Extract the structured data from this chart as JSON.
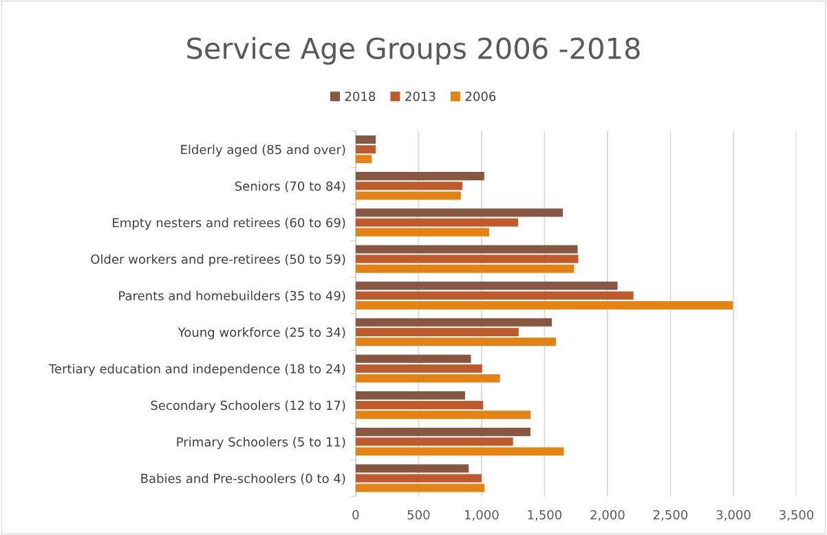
{
  "chart_data": {
    "type": "bar",
    "orientation": "horizontal",
    "title": "Service Age Groups 2006 -2018",
    "categories": [
      "Elderly aged (85 and over)",
      "Seniors (70 to 84)",
      "Empty nesters and retirees (60 to 69)",
      "Older workers and pre-retirees (50 to 59)",
      "Parents and homebuilders (35 to 49)",
      "Young workforce (25 to 34)",
      "Tertiary education and independence (18 to 24)",
      "Secondary Schoolers (12 to 17)",
      "Primary Schoolers (5 to 11)",
      "Babies and Pre-schoolers (0 to 4)"
    ],
    "series": [
      {
        "name": "2018",
        "color": "#875741",
        "values": [
          160,
          1022,
          1646,
          1763,
          2080,
          1558,
          916,
          869,
          1389,
          898
        ]
      },
      {
        "name": "2013",
        "color": "#be5a2c",
        "values": [
          160,
          849,
          1290,
          1768,
          2206,
          1294,
          1004,
          1013,
          1250,
          1000
        ]
      },
      {
        "name": "2006",
        "color": "#e48314",
        "values": [
          128,
          836,
          1060,
          1735,
          2995,
          1591,
          1146,
          1389,
          1653,
          1024
        ]
      }
    ],
    "xlim": [
      0,
      3500
    ],
    "xticks": [
      {
        "value": 0,
        "label": "0"
      },
      {
        "value": 500,
        "label": "500"
      },
      {
        "value": 1000,
        "label": "1,000"
      },
      {
        "value": 1500,
        "label": "1,500"
      },
      {
        "value": 2000,
        "label": "2,000"
      },
      {
        "value": 2500,
        "label": "2,500"
      },
      {
        "value": 3000,
        "label": "3,000"
      },
      {
        "value": 3500,
        "label": "3,500"
      }
    ],
    "grid": "x",
    "legend": "top"
  }
}
